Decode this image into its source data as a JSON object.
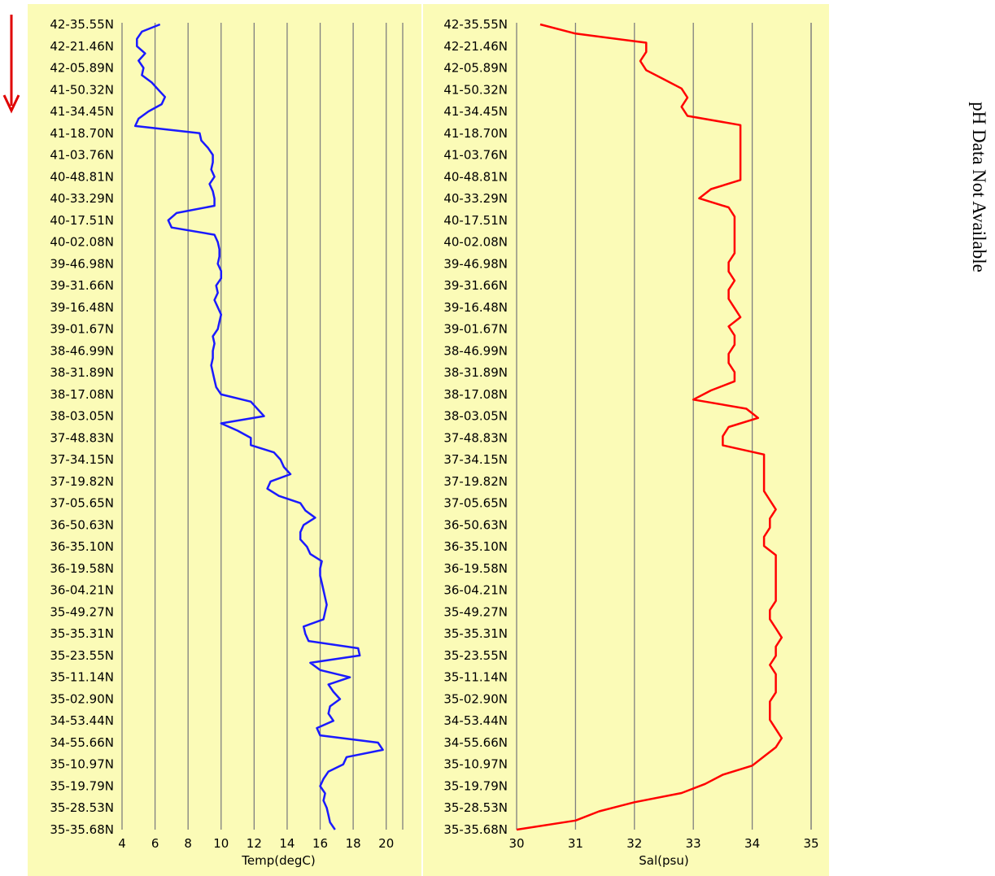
{
  "side_note": "pH Data Not Available",
  "arrow_color": "#e00000",
  "chart_data": [
    {
      "type": "line",
      "xlabel": "Temp(degC)",
      "ylabel": "",
      "xlim": [
        4,
        21
      ],
      "xticks": [
        4,
        6,
        8,
        10,
        12,
        14,
        16,
        18,
        20
      ],
      "grid": true,
      "line_color": "#1a1aff",
      "y_labels": [
        "42-35.55N",
        "42-21.46N",
        "42-05.89N",
        "41-50.32N",
        "41-34.45N",
        "41-18.70N",
        "41-03.76N",
        "40-48.81N",
        "40-33.29N",
        "40-17.51N",
        "40-02.08N",
        "39-46.98N",
        "39-31.66N",
        "39-16.48N",
        "39-01.67N",
        "38-46.99N",
        "38-31.89N",
        "38-17.08N",
        "38-03.05N",
        "37-48.83N",
        "37-34.15N",
        "37-19.82N",
        "37-05.65N",
        "36-50.63N",
        "36-35.10N",
        "36-19.58N",
        "36-04.21N",
        "35-49.27N",
        "35-35.31N",
        "35-23.55N",
        "35-11.14N",
        "35-02.90N",
        "34-53.44N",
        "34-55.66N",
        "35-10.97N",
        "35-19.79N",
        "35-28.53N",
        "35-35.68N"
      ],
      "series": [
        {
          "values": [
            6.3,
            5.2,
            4.9,
            4.9,
            5.4,
            5.0,
            5.3,
            5.2,
            5.8,
            6.2,
            6.6,
            6.4,
            5.6,
            5.0,
            4.8,
            8.7,
            8.8,
            9.2,
            9.5,
            9.5,
            9.4,
            9.6,
            9.3,
            9.5,
            9.6,
            9.6,
            7.3,
            6.8,
            7.0,
            9.6,
            9.8,
            9.9,
            9.9,
            9.8,
            10.0,
            10.0,
            9.7,
            9.8,
            9.6,
            9.8,
            10.0,
            9.9,
            9.8,
            9.5,
            9.6,
            9.5,
            9.5,
            9.4,
            9.5,
            9.6,
            9.7,
            10.0,
            11.8,
            12.2,
            12.6,
            10.0,
            11.0,
            11.8,
            11.8,
            13.2,
            13.6,
            13.8,
            14.2,
            13.0,
            12.8,
            13.5,
            14.8,
            15.1,
            15.7,
            15.0,
            14.8,
            14.8,
            15.2,
            15.4,
            16.1,
            16.0,
            16.0,
            16.1,
            16.2,
            16.3,
            16.4,
            16.3,
            16.2,
            15.0,
            15.1,
            15.3,
            18.3,
            18.4,
            15.4,
            16.0,
            17.8,
            16.5,
            16.8,
            17.2,
            16.6,
            16.5,
            16.8,
            15.8,
            16.0,
            19.5,
            19.8,
            17.6,
            17.4,
            16.5,
            16.2,
            16.0,
            16.3,
            16.2,
            16.4,
            16.5,
            16.6,
            16.9
          ]
        }
      ]
    },
    {
      "type": "line",
      "xlabel": "Sal(psu)",
      "ylabel": "",
      "xlim": [
        30,
        35
      ],
      "xticks": [
        30,
        31,
        32,
        33,
        34,
        35
      ],
      "grid": true,
      "line_color": "#ff0000",
      "y_labels": [
        "42-35.55N",
        "42-21.46N",
        "42-05.89N",
        "41-50.32N",
        "41-34.45N",
        "41-18.70N",
        "41-03.76N",
        "40-48.81N",
        "40-33.29N",
        "40-17.51N",
        "40-02.08N",
        "39-46.98N",
        "39-31.66N",
        "39-16.48N",
        "39-01.67N",
        "38-46.99N",
        "38-31.89N",
        "38-17.08N",
        "38-03.05N",
        "37-48.83N",
        "37-34.15N",
        "37-19.82N",
        "37-05.65N",
        "36-50.63N",
        "36-35.10N",
        "36-19.58N",
        "36-04.21N",
        "35-49.27N",
        "35-35.31N",
        "35-23.55N",
        "35-11.14N",
        "35-02.90N",
        "34-53.44N",
        "34-55.66N",
        "35-10.97N",
        "35-19.79N",
        "35-28.53N",
        "35-35.68N"
      ],
      "series": [
        {
          "values": [
            30.4,
            31.0,
            32.2,
            32.2,
            32.1,
            32.2,
            32.5,
            32.8,
            32.9,
            32.8,
            32.9,
            33.8,
            33.8,
            33.8,
            33.8,
            33.8,
            33.8,
            33.8,
            33.3,
            33.1,
            33.6,
            33.7,
            33.7,
            33.7,
            33.7,
            33.7,
            33.6,
            33.6,
            33.7,
            33.6,
            33.6,
            33.7,
            33.8,
            33.6,
            33.7,
            33.7,
            33.6,
            33.6,
            33.7,
            33.7,
            33.3,
            33.0,
            33.9,
            34.1,
            33.6,
            33.5,
            33.5,
            34.2,
            34.2,
            34.2,
            34.2,
            34.2,
            34.3,
            34.4,
            34.3,
            34.3,
            34.2,
            34.2,
            34.4,
            34.4,
            34.4,
            34.4,
            34.4,
            34.4,
            34.3,
            34.3,
            34.4,
            34.5,
            34.4,
            34.4,
            34.3,
            34.4,
            34.4,
            34.4,
            34.3,
            34.3,
            34.3,
            34.4,
            34.5,
            34.4,
            34.2,
            34.0,
            33.5,
            33.2,
            32.8,
            32.0,
            31.4,
            31.0,
            30.0
          ]
        }
      ]
    }
  ]
}
